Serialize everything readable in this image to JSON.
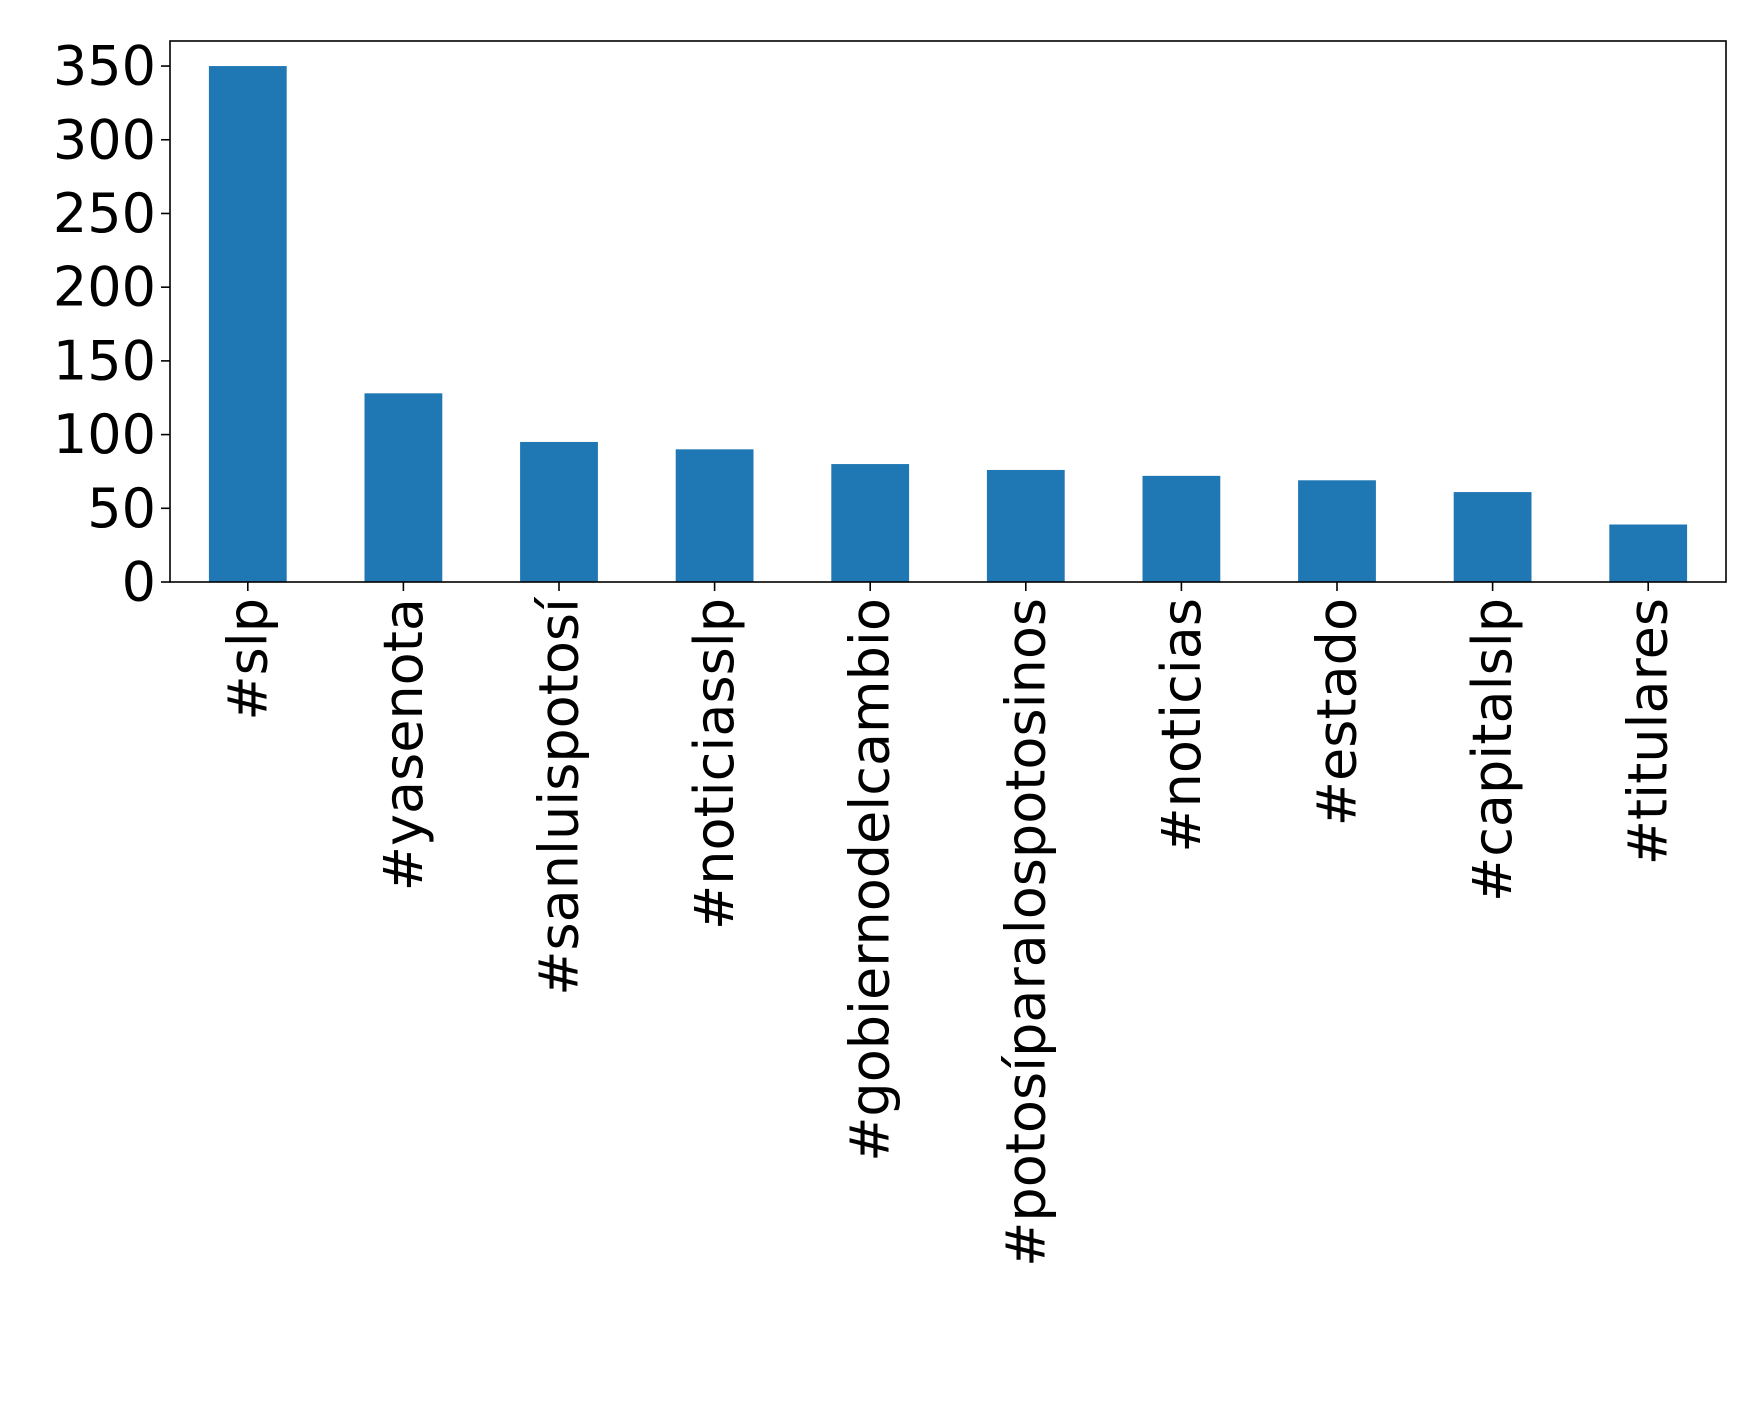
{
  "chart_data": {
    "type": "bar",
    "title": "",
    "xlabel": "",
    "ylabel": "",
    "categories": [
      "#slp",
      "#yasenota",
      "#sanluispotosí",
      "#noticiasslp",
      "#gobiernodelcambio",
      "#potosíparalospotosinos",
      "#noticias",
      "#estado",
      "#capitalslp",
      "#titulares"
    ],
    "values": [
      350,
      128,
      95,
      90,
      80,
      76,
      72,
      69,
      61,
      39
    ],
    "ylim": [
      0,
      367
    ],
    "yticks": [
      0,
      50,
      100,
      150,
      200,
      250,
      300,
      350
    ],
    "ytick_labels": [
      "0",
      "50",
      "100",
      "150",
      "200",
      "250",
      "300",
      "350"
    ],
    "grid": false,
    "legend": "none",
    "colors": {
      "bar": "#1f77b4",
      "axes": "#000000",
      "text": "#000000",
      "background": "#ffffff"
    }
  }
}
